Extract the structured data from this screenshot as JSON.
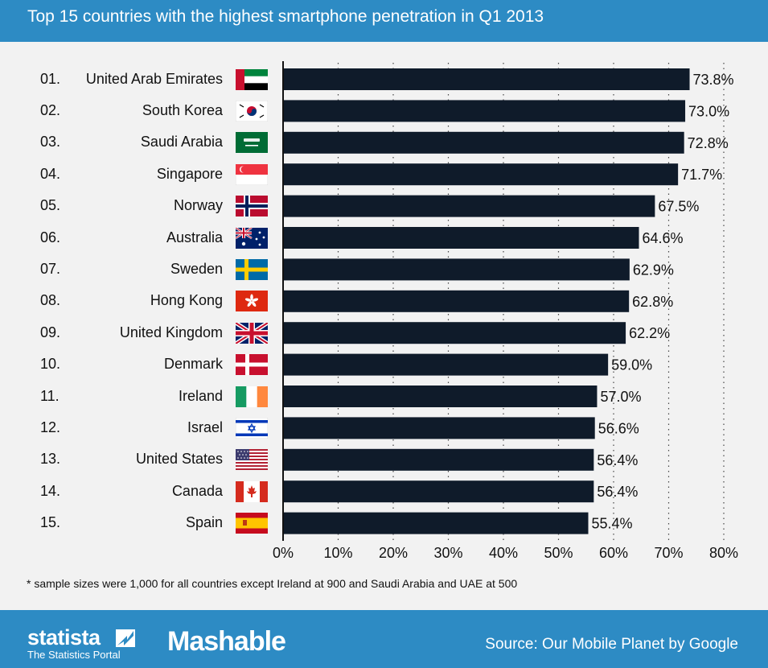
{
  "header": {
    "title": "Top 15 countries with the highest smartphone penetration in Q1 2013"
  },
  "chart_data": {
    "type": "bar",
    "orientation": "horizontal",
    "ranks": [
      "01.",
      "02.",
      "03.",
      "04.",
      "05.",
      "06.",
      "07.",
      "08.",
      "09.",
      "10.",
      "11.",
      "12.",
      "13.",
      "14.",
      "15."
    ],
    "categories": [
      "United Arab Emirates",
      "South Korea",
      "Saudi Arabia",
      "Singapore",
      "Norway",
      "Australia",
      "Sweden",
      "Hong Kong",
      "United Kingdom",
      "Denmark",
      "Ireland",
      "Israel",
      "United States",
      "Canada",
      "Spain"
    ],
    "flags": [
      "uae-flag-icon",
      "south-korea-flag-icon",
      "saudi-arabia-flag-icon",
      "singapore-flag-icon",
      "norway-flag-icon",
      "australia-flag-icon",
      "sweden-flag-icon",
      "hong-kong-flag-icon",
      "uk-flag-icon",
      "denmark-flag-icon",
      "ireland-flag-icon",
      "israel-flag-icon",
      "usa-flag-icon",
      "canada-flag-icon",
      "spain-flag-icon"
    ],
    "values": [
      73.8,
      73.0,
      72.8,
      71.7,
      67.5,
      64.6,
      62.9,
      62.8,
      62.2,
      59.0,
      57.0,
      56.6,
      56.4,
      56.4,
      55.4
    ],
    "value_labels": [
      "73.8%",
      "73.0%",
      "72.8%",
      "71.7%",
      "67.5%",
      "64.6%",
      "62.9%",
      "62.8%",
      "62.2%",
      "59.0%",
      "57.0%",
      "56.6%",
      "56.4%",
      "56.4%",
      "55.4%"
    ],
    "xlim": [
      0,
      80
    ],
    "xticks": [
      0,
      10,
      20,
      30,
      40,
      50,
      60,
      70,
      80
    ],
    "xtick_labels": [
      "0%",
      "10%",
      "20%",
      "30%",
      "40%",
      "50%",
      "60%",
      "70%",
      "80%"
    ],
    "grid": "vertical-dotted",
    "bar_color": "#0f1b2a",
    "title": "Top 15 countries with the highest smartphone penetration in Q1 2013",
    "xlabel": "",
    "ylabel": ""
  },
  "footnote": "* sample sizes were 1,000 for all countries except Ireland at 900 and Saudi Arabia and UAE at 500",
  "footer": {
    "statista_name": "statista",
    "statista_tagline": "The Statistics Portal",
    "partner_name": "Mashable",
    "source": "Source: Our Mobile Planet by Google"
  },
  "colors": {
    "header_footer": "#2d8bc4",
    "background": "#f2f2f2",
    "bar": "#0f1b2a"
  }
}
